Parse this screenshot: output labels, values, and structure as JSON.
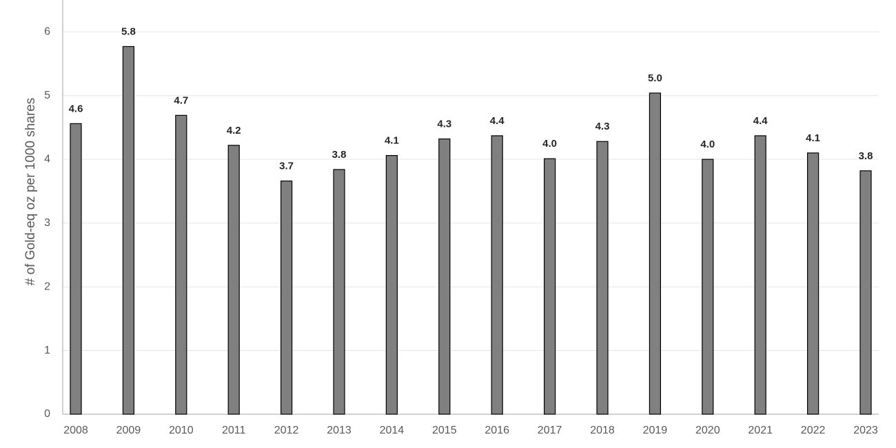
{
  "chart_data": {
    "type": "bar",
    "y_label": "# of Gold-eq oz per 1000 shares",
    "categories": [
      "2008",
      "2009",
      "2010",
      "2011",
      "2012",
      "2013",
      "2014",
      "2015",
      "2016",
      "2017",
      "2018",
      "2019",
      "2020",
      "2021",
      "2022",
      "2023"
    ],
    "values": [
      4.56,
      5.77,
      4.69,
      4.22,
      3.66,
      3.84,
      4.06,
      4.32,
      4.37,
      4.01,
      4.28,
      5.04,
      4.0,
      4.37,
      4.1,
      3.82
    ],
    "value_labels": [
      "4.6",
      "5.8",
      "4.7",
      "4.2",
      "3.7",
      "3.8",
      "4.1",
      "4.3",
      "4.4",
      "4.0",
      "4.3",
      "5.0",
      "4.0",
      "4.4",
      "4.1",
      "3.8"
    ],
    "color": "#808080",
    "ylim": [
      0,
      6.5
    ],
    "yticks": [
      0,
      1,
      2,
      3,
      4,
      5,
      6
    ],
    "grid": true
  }
}
